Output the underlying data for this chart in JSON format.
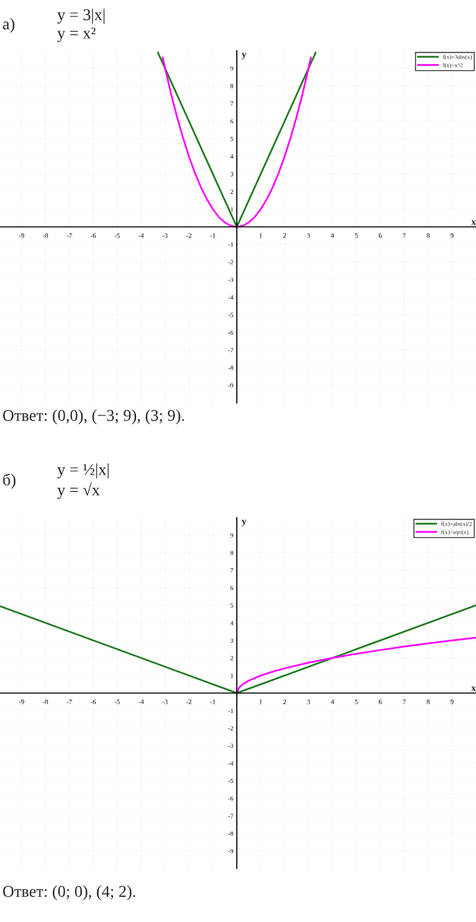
{
  "chart_data": [
    {
      "type": "line",
      "title": "а)",
      "subtitle": "y = 3|x|\ny = x²",
      "xlabel": "x",
      "ylabel": "y",
      "xlim": [
        -9.9,
        10
      ],
      "ylim": [
        -10,
        10
      ],
      "xticks": [
        -9,
        -8,
        -7,
        -6,
        -5,
        -4,
        -3,
        -2,
        -1,
        1,
        2,
        3,
        4,
        5,
        6,
        7,
        8,
        9
      ],
      "yticks": [
        -9,
        -8,
        -7,
        -6,
        -5,
        -4,
        -3,
        -2,
        -1,
        1,
        2,
        3,
        4,
        5,
        6,
        7,
        8,
        9
      ],
      "grid": true,
      "legend": "top right",
      "series": [
        {
          "name": "f(x)=3abs(x)",
          "color": "#1e7a1e",
          "x": [
            -3.3,
            0,
            3.3
          ],
          "values": [
            9.9,
            0,
            9.9
          ]
        },
        {
          "name": "f(x)=x^2",
          "color": "#ff00ff",
          "x": [
            -3.1,
            -2.75,
            -2.5,
            -2.25,
            -2,
            -1.75,
            -1.5,
            -1.25,
            -1,
            -0.75,
            -0.5,
            -0.25,
            0,
            0.25,
            0.5,
            0.75,
            1,
            1.25,
            1.5,
            1.75,
            2,
            2.25,
            2.5,
            2.75,
            3.1
          ],
          "values": [
            9.61,
            7.56,
            6.25,
            5.06,
            4,
            3.06,
            2.25,
            1.56,
            1,
            0.56,
            0.25,
            0.06,
            0,
            0.06,
            0.25,
            0.56,
            1,
            1.56,
            2.25,
            3.06,
            4,
            5.06,
            6.25,
            7.56,
            9.61
          ]
        }
      ],
      "annotations": [
        "Ответ: (0,0), (−3; 9), (3; 9)."
      ]
    },
    {
      "type": "line",
      "title": "б)",
      "subtitle": "y = ½|x|\ny = √x",
      "xlabel": "x",
      "ylabel": "y",
      "xlim": [
        -9.9,
        10
      ],
      "ylim": [
        -10,
        10
      ],
      "xticks": [
        -9,
        -8,
        -7,
        -6,
        -5,
        -4,
        -3,
        -2,
        -1,
        1,
        2,
        3,
        4,
        5,
        6,
        7,
        8,
        9
      ],
      "yticks": [
        -9,
        -8,
        -7,
        -6,
        -5,
        -4,
        -3,
        -2,
        -1,
        1,
        2,
        3,
        4,
        5,
        6,
        7,
        8,
        9
      ],
      "grid": true,
      "legend": "top right",
      "series": [
        {
          "name": "f(x)=abs(x)/2",
          "color": "#1e7a1e",
          "x": [
            -9.9,
            0,
            10
          ],
          "values": [
            4.95,
            0,
            5
          ]
        },
        {
          "name": "f(x)=sqrt(x)",
          "color": "#ff00ff",
          "x": [
            0,
            0.1,
            0.25,
            0.5,
            1,
            1.5,
            2,
            3,
            4,
            5,
            6,
            7,
            8,
            9,
            10
          ],
          "values": [
            0,
            0.32,
            0.5,
            0.71,
            1,
            1.22,
            1.41,
            1.73,
            2,
            2.24,
            2.45,
            2.65,
            2.83,
            3,
            3.16
          ]
        }
      ],
      "annotations": [
        "Ответ: (0; 0), (4; 2)."
      ]
    }
  ]
}
